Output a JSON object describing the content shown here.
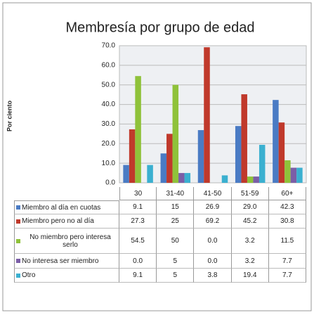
{
  "chart_data": {
    "type": "bar",
    "title": "Membresía por grupo de edad",
    "ylabel": "Por ciento",
    "categories": [
      "30",
      "31-40",
      "41-50",
      "51-59",
      "60+"
    ],
    "series": [
      {
        "name": "Miembro al día en cuotas",
        "color": "#4a7bc4",
        "values": [
          9.1,
          15,
          26.9,
          29.0,
          42.3
        ],
        "value_labels": [
          "9.1",
          "15",
          "26.9",
          "29.0",
          "42.3"
        ]
      },
      {
        "name": "Miembro pero no al día",
        "color": "#c0392b",
        "values": [
          27.3,
          25,
          69.2,
          45.2,
          30.8
        ],
        "value_labels": [
          "27.3",
          "25",
          "69.2",
          "45.2",
          "30.8"
        ]
      },
      {
        "name": "No miembro pero interesa serlo",
        "color": "#8fc23a",
        "values": [
          54.5,
          50,
          0.0,
          3.2,
          11.5
        ],
        "value_labels": [
          "54.5",
          "50",
          "0.0",
          "3.2",
          "11.5"
        ]
      },
      {
        "name": "No interesa ser miembro",
        "color": "#7b5ea7",
        "values": [
          0.0,
          5,
          0.0,
          3.2,
          7.7
        ],
        "value_labels": [
          "0.0",
          "5",
          "0.0",
          "3.2",
          "7.7"
        ]
      },
      {
        "name": "Otro",
        "color": "#3bb0d0",
        "values": [
          9.1,
          5,
          3.8,
          19.4,
          7.7
        ],
        "value_labels": [
          "9.1",
          "5",
          "3.8",
          "19.4",
          "7.7"
        ]
      }
    ],
    "ylim": [
      0,
      70
    ],
    "yticks": [
      {
        "value": 0,
        "label": "0.0"
      },
      {
        "value": 10,
        "label": "10.0"
      },
      {
        "value": 20,
        "label": "20.0"
      },
      {
        "value": 30,
        "label": "30.0"
      },
      {
        "value": 40,
        "label": "40.0"
      },
      {
        "value": 50,
        "label": "50.0"
      },
      {
        "value": 60,
        "label": "60.0"
      },
      {
        "value": 70,
        "label": "70.0"
      }
    ],
    "grid": true
  }
}
